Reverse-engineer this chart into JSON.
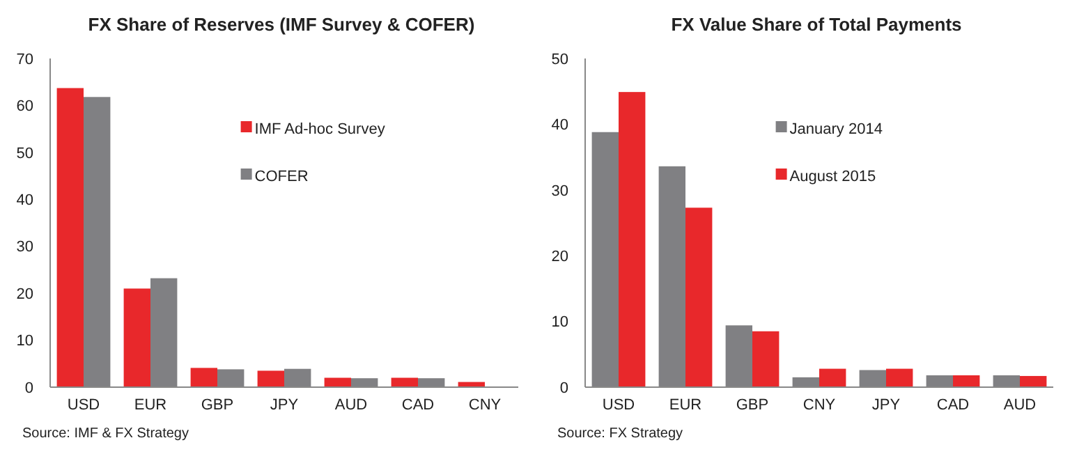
{
  "chart_data": [
    {
      "type": "bar",
      "title": "FX Share of Reserves (IMF Survey & COFER)",
      "categories": [
        "USD",
        "EUR",
        "GBP",
        "JPY",
        "AUD",
        "CAD",
        "CNY"
      ],
      "ylim": [
        0,
        70
      ],
      "yticks": [
        0,
        10,
        20,
        30,
        40,
        50,
        60,
        70
      ],
      "legend": "top right",
      "annotations": [
        "Source: IMF & FX Strategy"
      ],
      "series": [
        {
          "name": "IMF Ad-hoc Survey",
          "color": "#e8282b",
          "values": [
            63.7,
            21,
            4.1,
            3.5,
            2.0,
            2.0,
            1.1
          ]
        },
        {
          "name": "COFER",
          "color": "#808083",
          "values": [
            61.8,
            23.2,
            3.8,
            3.9,
            1.9,
            1.9,
            null
          ]
        }
      ]
    },
    {
      "type": "bar",
      "title": "FX Value Share of Total Payments",
      "categories": [
        "USD",
        "EUR",
        "GBP",
        "CNY",
        "JPY",
        "CAD",
        "AUD"
      ],
      "ylim": [
        0,
        50
      ],
      "yticks": [
        0,
        10,
        20,
        30,
        40,
        50
      ],
      "legend": "top right",
      "annotations": [
        "Source: FX Strategy"
      ],
      "series": [
        {
          "name": "January 2014",
          "color": "#808083",
          "values": [
            38.8,
            33.6,
            9.4,
            1.5,
            2.6,
            1.8,
            1.8
          ]
        },
        {
          "name": "August 2015",
          "color": "#e8282b",
          "values": [
            44.9,
            27.3,
            8.5,
            2.8,
            2.8,
            1.8,
            1.7
          ]
        }
      ]
    }
  ]
}
